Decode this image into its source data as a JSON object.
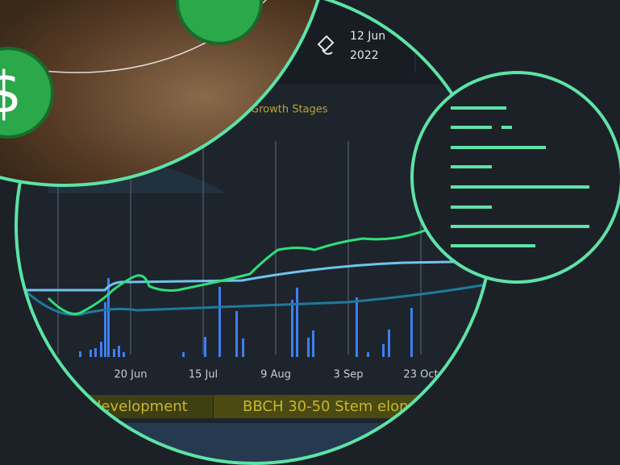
{
  "date": {
    "day": "12 Jun",
    "year": "2022"
  },
  "legend": {
    "label": "Growth Stages"
  },
  "x_labels": [
    "20 Jun",
    "15 Jul",
    "9 Aug",
    "3 Sep",
    "23 Oct"
  ],
  "stages": [
    "development",
    "BBCH 30-50 Stem elon"
  ]
}
